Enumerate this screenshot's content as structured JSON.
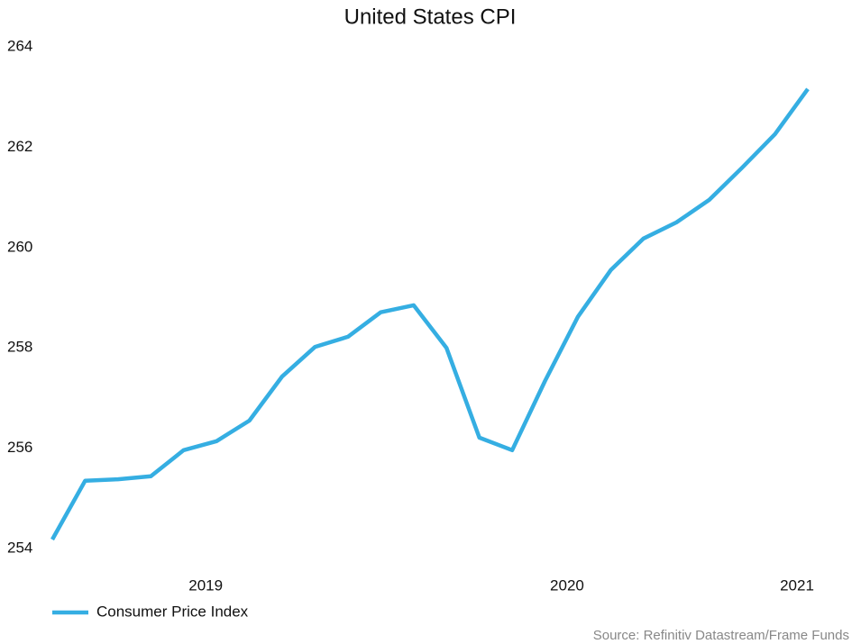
{
  "chart_data": {
    "type": "line",
    "title": "United States CPI",
    "categories": [
      null,
      null,
      null,
      null,
      null,
      "2019",
      null,
      null,
      null,
      null,
      null,
      null,
      null,
      null,
      null,
      null,
      "2020",
      null,
      null,
      null,
      null,
      null,
      null,
      "2021"
    ],
    "series": [
      {
        "name": "Consumer Price Index",
        "color": "#35aee2",
        "values": [
          254.18,
          255.35,
          255.38,
          255.44,
          255.96,
          256.14,
          256.55,
          257.43,
          258.02,
          258.22,
          258.71,
          258.85,
          258.0,
          256.21,
          255.96,
          257.34,
          258.62,
          259.55,
          260.18,
          260.5,
          260.95,
          261.59,
          262.26,
          263.16
        ]
      }
    ],
    "ylim": [
      254,
      264
    ],
    "yticks": [
      254,
      256,
      258,
      260,
      262,
      264
    ],
    "grid": false,
    "legend": "bottom-left",
    "source": "Source: Refinitiv Datastream/Frame Funds"
  }
}
